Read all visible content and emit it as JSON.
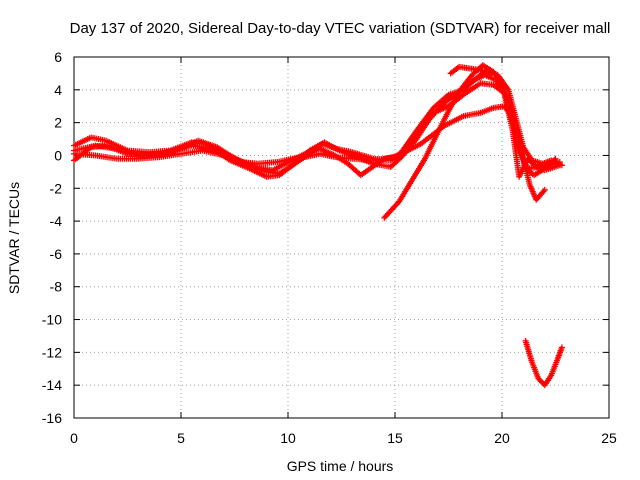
{
  "chart_data": {
    "type": "scatter",
    "title": "Day 137 of 2020, Sidereal Day-to-day VTEC variation (SDTVAR) for receiver mall",
    "xlabel": "GPS time / hours",
    "ylabel": "SDTVAR / TECUs",
    "xlim": [
      0,
      25
    ],
    "ylim": [
      -16,
      6
    ],
    "xticks": [
      0,
      5,
      10,
      15,
      20,
      25
    ],
    "yticks": [
      -16,
      -14,
      -12,
      -10,
      -8,
      -6,
      -4,
      -2,
      0,
      2,
      4,
      6
    ],
    "grid": true,
    "marker": "plus",
    "color": "#ff0000",
    "series": [
      {
        "name": "track-1",
        "points": [
          [
            0,
            0.6
          ],
          [
            0.8,
            1.1
          ],
          [
            1.5,
            0.9
          ],
          [
            2.5,
            0.3
          ],
          [
            3.5,
            0.2
          ],
          [
            4.5,
            0.3
          ],
          [
            5.5,
            0.8
          ],
          [
            6.2,
            0.7
          ],
          [
            7,
            0.2
          ],
          [
            8,
            -0.5
          ],
          [
            9,
            -1.0
          ],
          [
            9.6,
            -1.1
          ],
          [
            10.2,
            -0.6
          ],
          [
            11,
            0.1
          ],
          [
            11.6,
            0.7
          ],
          [
            12.3,
            0.4
          ],
          [
            13,
            0.2
          ],
          [
            14,
            -0.2
          ],
          [
            14.8,
            -0.3
          ],
          [
            15.3,
            0.2
          ],
          [
            16,
            1.5
          ],
          [
            16.8,
            2.9
          ],
          [
            17.5,
            3.7
          ],
          [
            18.2,
            4.0
          ],
          [
            18.8,
            4.7
          ],
          [
            19.3,
            5.2
          ],
          [
            19.8,
            4.9
          ],
          [
            20.3,
            4.0
          ],
          [
            20.6,
            2.5
          ],
          [
            21,
            0.5
          ],
          [
            21.4,
            -0.3
          ],
          [
            21.9,
            -0.5
          ],
          [
            22.3,
            -0.3
          ],
          [
            22.8,
            -0.6
          ]
        ]
      },
      {
        "name": "track-2",
        "points": [
          [
            0,
            -0.3
          ],
          [
            0.8,
            0.5
          ],
          [
            1.5,
            0.6
          ],
          [
            2.5,
            0.1
          ],
          [
            3.5,
            0.0
          ],
          [
            4.5,
            0.2
          ],
          [
            5.5,
            0.6
          ],
          [
            6.5,
            0.4
          ],
          [
            7.3,
            -0.3
          ],
          [
            8.2,
            -0.8
          ],
          [
            9,
            -1.3
          ],
          [
            9.6,
            -1.2
          ],
          [
            10.3,
            -0.5
          ],
          [
            11,
            0.3
          ],
          [
            11.7,
            0.8
          ],
          [
            12.4,
            0.3
          ],
          [
            13.2,
            -0.1
          ],
          [
            14,
            -0.5
          ],
          [
            14.8,
            -0.7
          ],
          [
            15.3,
            -0.1
          ],
          [
            16,
            1.0
          ],
          [
            16.6,
            2.2
          ],
          [
            17.3,
            3.2
          ],
          [
            18,
            3.9
          ],
          [
            18.7,
            4.6
          ],
          [
            19.2,
            4.9
          ],
          [
            19.7,
            4.6
          ],
          [
            20.2,
            3.6
          ],
          [
            20.5,
            2.0
          ],
          [
            20.8,
            0.3
          ],
          [
            21.2,
            -0.8
          ],
          [
            21.7,
            -0.7
          ],
          [
            22.2,
            -0.6
          ],
          [
            22.7,
            -0.4
          ]
        ]
      },
      {
        "name": "track-3",
        "points": [
          [
            0,
            0.3
          ],
          [
            1,
            0.6
          ],
          [
            2,
            0.4
          ],
          [
            3,
            0.0
          ],
          [
            4,
            0.1
          ],
          [
            5,
            0.4
          ],
          [
            5.8,
            0.9
          ],
          [
            6.7,
            0.5
          ],
          [
            7.5,
            -0.2
          ],
          [
            8.5,
            -0.7
          ],
          [
            9.3,
            -0.9
          ],
          [
            10,
            -0.4
          ],
          [
            10.8,
            0.1
          ],
          [
            11.5,
            0.4
          ],
          [
            12.2,
            0.0
          ],
          [
            12.8,
            -0.5
          ],
          [
            13.4,
            -1.2
          ],
          [
            14.5,
            -0.2
          ],
          [
            15.3,
            0.0
          ],
          [
            16,
            1.3
          ],
          [
            16.8,
            2.6
          ],
          [
            17.5,
            3.0
          ],
          [
            18.3,
            3.8
          ],
          [
            19,
            4.4
          ],
          [
            19.6,
            4.3
          ],
          [
            20.1,
            3.8
          ],
          [
            20.5,
            1.5
          ],
          [
            20.8,
            -1.3
          ],
          [
            21.2,
            -0.2
          ],
          [
            21.6,
            -0.7
          ],
          [
            22,
            -0.9
          ],
          [
            22.7,
            -0.6
          ]
        ]
      },
      {
        "name": "track-4",
        "points": [
          [
            0,
            0.1
          ],
          [
            1,
            0.0
          ],
          [
            2,
            -0.2
          ],
          [
            3,
            -0.2
          ],
          [
            4,
            -0.1
          ],
          [
            5,
            0.1
          ],
          [
            6,
            0.3
          ],
          [
            7,
            0.0
          ],
          [
            7.8,
            -0.4
          ],
          [
            8.6,
            -0.5
          ],
          [
            9.5,
            -0.4
          ],
          [
            10.2,
            -0.2
          ],
          [
            10.8,
            -0.1
          ],
          [
            11.5,
            0.1
          ],
          [
            12.2,
            -0.1
          ],
          [
            13,
            -0.2
          ],
          [
            14,
            -0.3
          ],
          [
            15,
            -0.1
          ],
          [
            16.2,
            0.7
          ],
          [
            17.3,
            1.8
          ],
          [
            18.2,
            2.4
          ],
          [
            19,
            2.6
          ],
          [
            19.6,
            2.9
          ],
          [
            20.1,
            3.0
          ],
          [
            20.5,
            2.3
          ],
          [
            20.9,
            0.3
          ],
          [
            21.3,
            -1.8
          ],
          [
            21.6,
            -2.7
          ],
          [
            22,
            -2.1
          ]
        ]
      },
      {
        "name": "track-5",
        "points": [
          [
            14.5,
            -3.8
          ],
          [
            15.2,
            -2.8
          ],
          [
            15.8,
            -1.5
          ],
          [
            16.4,
            -0.2
          ],
          [
            17,
            1.4
          ],
          [
            17.5,
            2.7
          ],
          [
            18,
            3.9
          ],
          [
            18.6,
            4.9
          ],
          [
            19.1,
            5.5
          ],
          [
            19.6,
            5.1
          ],
          [
            20.1,
            4.1
          ],
          [
            20.4,
            2.4
          ],
          [
            20.8,
            0.7
          ],
          [
            21.1,
            -0.8
          ],
          [
            21.5,
            -1.2
          ],
          [
            22,
            -0.8
          ],
          [
            22.5,
            -0.2
          ]
        ]
      },
      {
        "name": "track-6",
        "points": [
          [
            17.6,
            5.0
          ],
          [
            18,
            5.4
          ],
          [
            18.5,
            5.3
          ],
          [
            19,
            5.2
          ],
          [
            19.5,
            5.0
          ]
        ]
      },
      {
        "name": "track-7",
        "points": [
          [
            21.1,
            -11.3
          ],
          [
            21.4,
            -12.6
          ],
          [
            21.7,
            -13.6
          ],
          [
            22.0,
            -14.0
          ],
          [
            22.3,
            -13.4
          ],
          [
            22.6,
            -12.4
          ],
          [
            22.8,
            -11.7
          ]
        ]
      }
    ]
  }
}
